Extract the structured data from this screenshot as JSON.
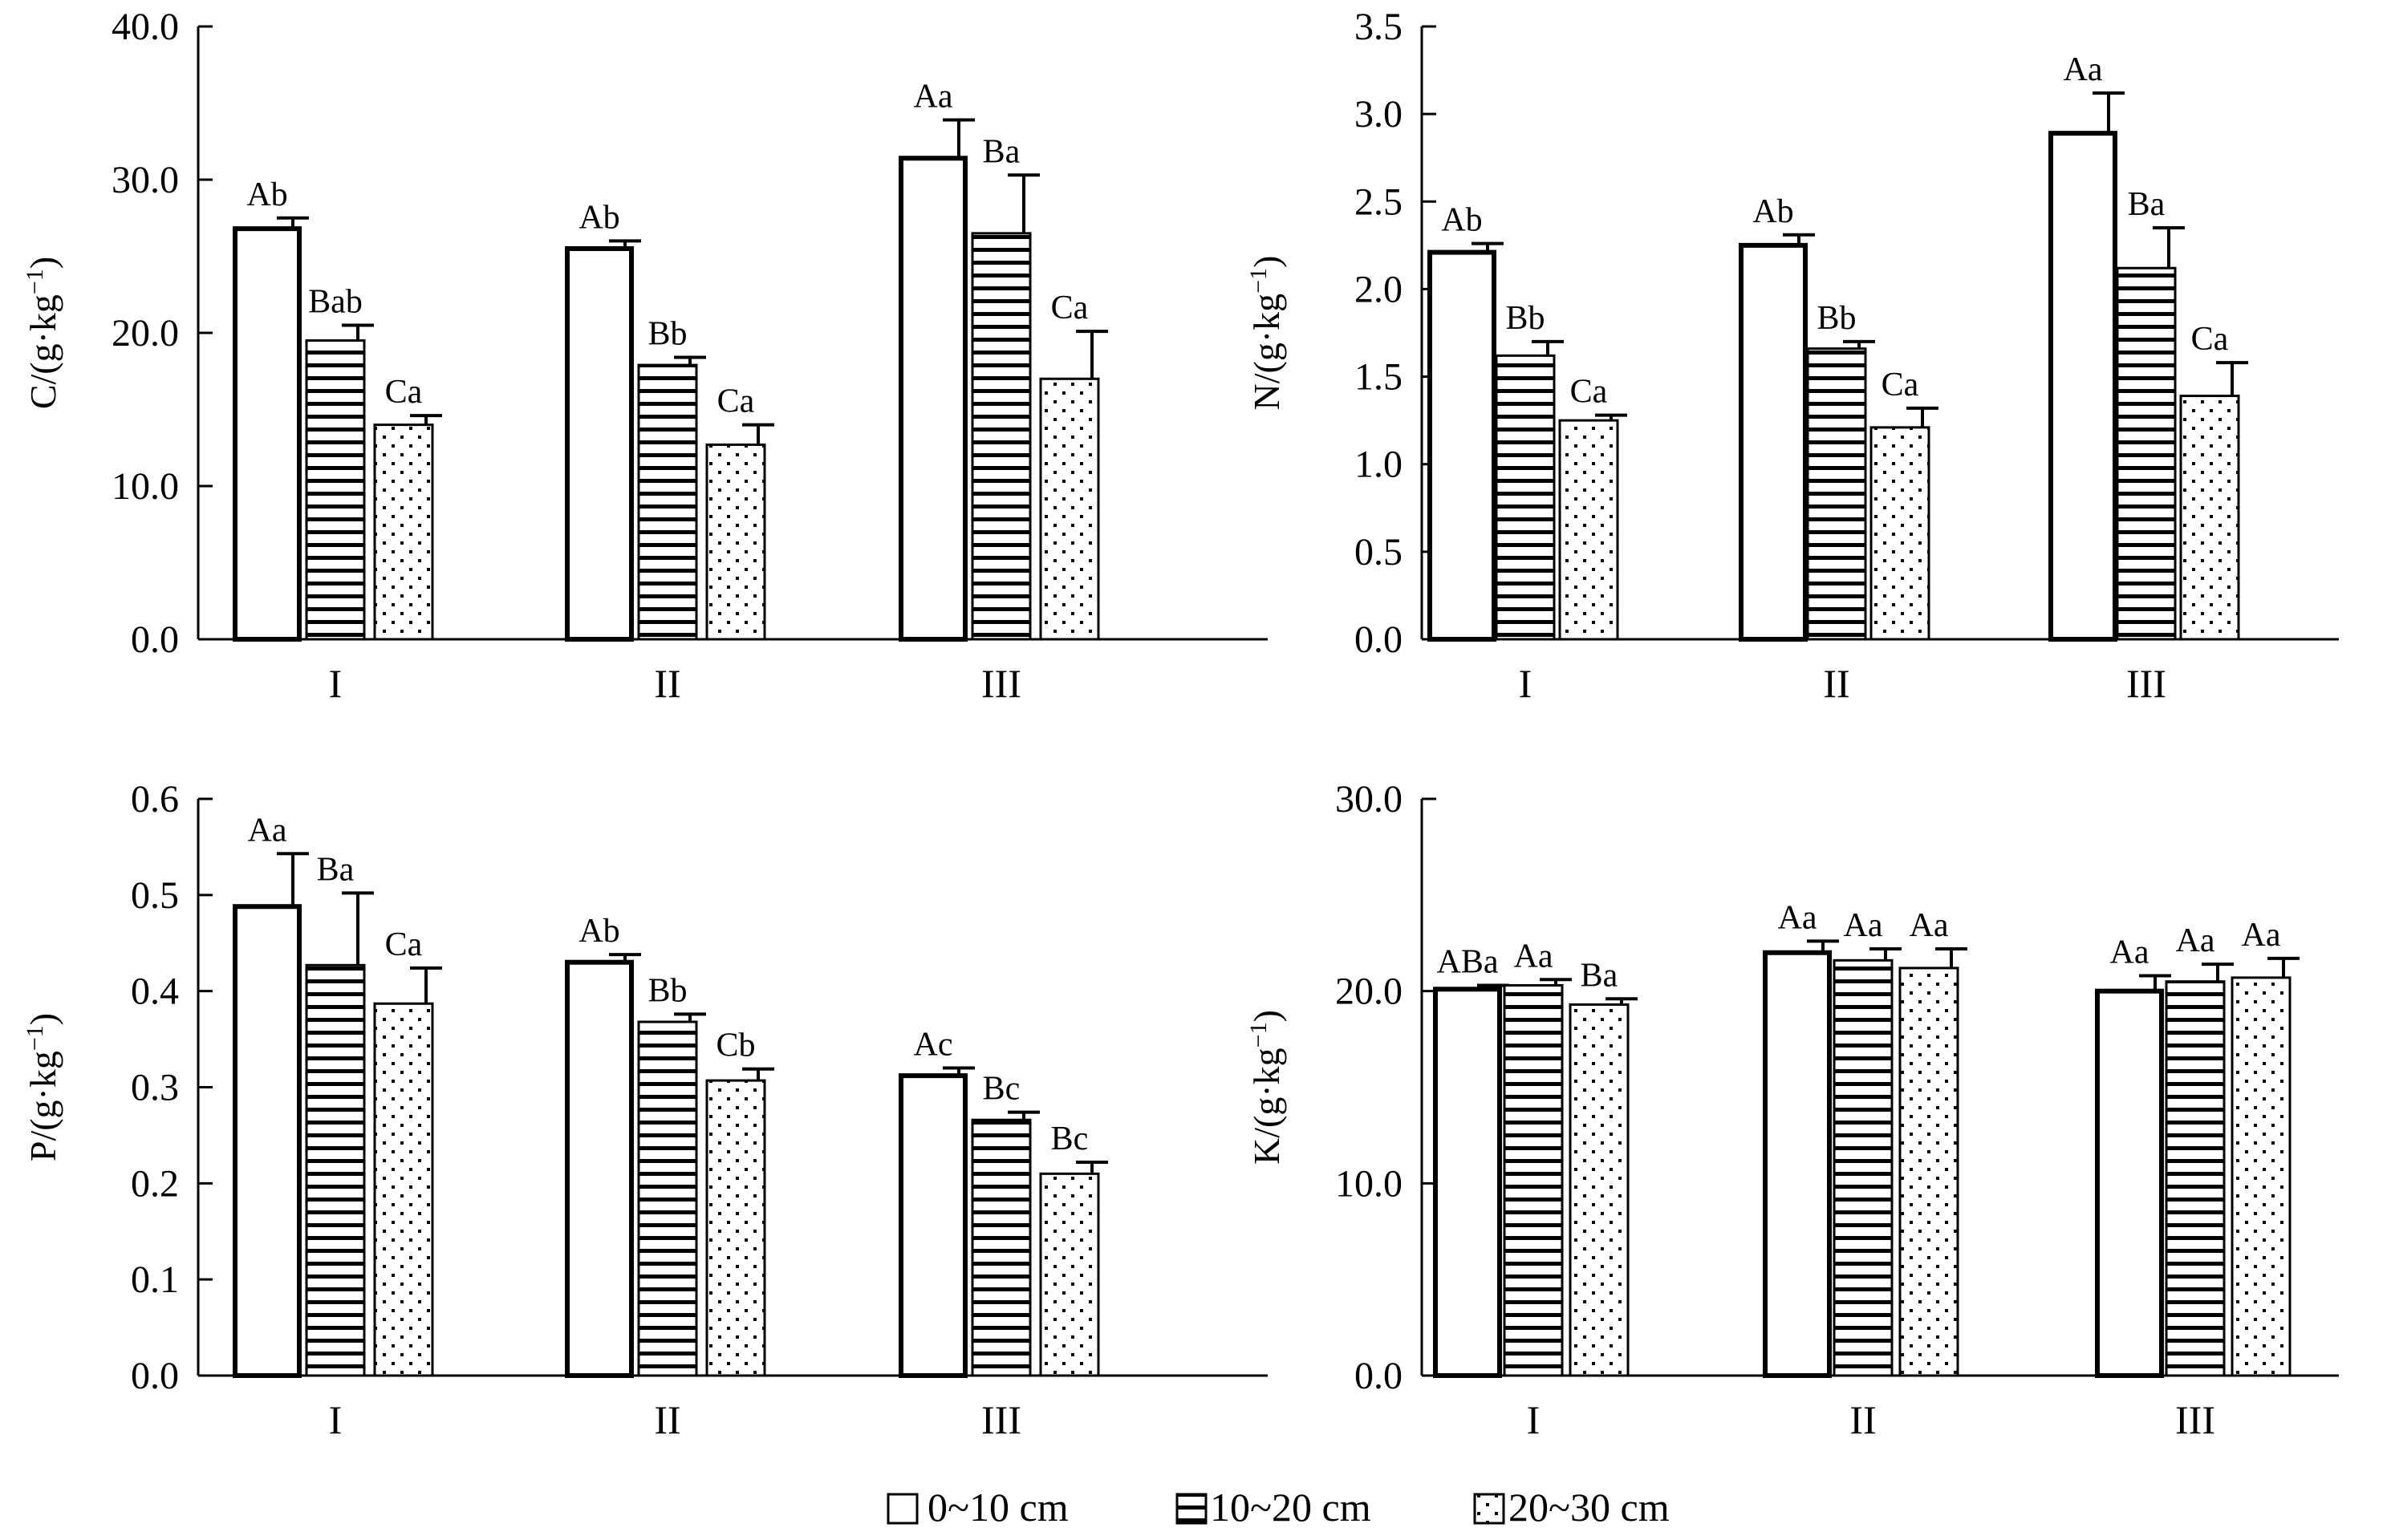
{
  "legend": {
    "items": [
      {
        "label": "0~10 cm",
        "pattern": "open"
      },
      {
        "label": "10~20 cm",
        "pattern": "hlines"
      },
      {
        "label": "20~30 cm",
        "pattern": "dots"
      }
    ]
  },
  "chart_data": [
    {
      "type": "bar",
      "ylabel_main": "C/(g·kg",
      "ylabel_sup": "−1",
      "ylabel_end": ")",
      "categories": [
        "I",
        "II",
        "III"
      ],
      "ylim": [
        0,
        40
      ],
      "yticks": [
        "0.0",
        "10.0",
        "20.0",
        "30.0",
        "40.0"
      ],
      "ytick_values": [
        0,
        10,
        20,
        30,
        40
      ],
      "series": [
        {
          "values": [
            26.8,
            25.5,
            31.4
          ],
          "errors": [
            0.7,
            0.5,
            2.5
          ],
          "labels": [
            "Ab",
            "Ab",
            "Aa"
          ]
        },
        {
          "values": [
            19.5,
            17.9,
            26.5
          ],
          "errors": [
            1.0,
            0.5,
            3.8
          ],
          "labels": [
            "Bab",
            "Bb",
            "Ba"
          ]
        },
        {
          "values": [
            14.0,
            12.7,
            17.0
          ],
          "errors": [
            0.6,
            1.3,
            3.1
          ],
          "labels": [
            "Ca",
            "Ca",
            "Ca"
          ]
        }
      ]
    },
    {
      "type": "bar",
      "ylabel_main": "N/(g·kg",
      "ylabel_sup": "−1",
      "ylabel_end": ")",
      "categories": [
        "I",
        "II",
        "III"
      ],
      "ylim": [
        0,
        3.5
      ],
      "yticks": [
        "0.0",
        "0.5",
        "1.0",
        "1.5",
        "2.0",
        "2.5",
        "3.0",
        "3.5"
      ],
      "ytick_values": [
        0,
        0.5,
        1.0,
        1.5,
        2.0,
        2.5,
        3.0,
        3.5
      ],
      "series": [
        {
          "values": [
            2.21,
            2.25,
            2.89
          ],
          "errors": [
            0.05,
            0.06,
            0.23
          ],
          "labels": [
            "Ab",
            "Ab",
            "Aa"
          ]
        },
        {
          "values": [
            1.62,
            1.66,
            2.12
          ],
          "errors": [
            0.08,
            0.04,
            0.23
          ],
          "labels": [
            "Bb",
            "Bb",
            "Ba"
          ]
        },
        {
          "values": [
            1.25,
            1.21,
            1.39
          ],
          "errors": [
            0.03,
            0.11,
            0.19
          ],
          "labels": [
            "Ca",
            "Ca",
            "Ca"
          ]
        }
      ]
    },
    {
      "type": "bar",
      "ylabel_main": "P/(g·kg",
      "ylabel_sup": "−1",
      "ylabel_end": ")",
      "categories": [
        "I",
        "II",
        "III"
      ],
      "ylim": [
        0,
        0.6
      ],
      "yticks": [
        "0.0",
        "0.1",
        "0.2",
        "0.3",
        "0.4",
        "0.5",
        "0.6"
      ],
      "ytick_values": [
        0,
        0.1,
        0.2,
        0.3,
        0.4,
        0.5,
        0.6
      ],
      "series": [
        {
          "values": [
            0.488,
            0.43,
            0.312
          ],
          "errors": [
            0.055,
            0.008,
            0.008
          ],
          "labels": [
            "Aa",
            "Ab",
            "Ac"
          ]
        },
        {
          "values": [
            0.427,
            0.368,
            0.266
          ],
          "errors": [
            0.075,
            0.008,
            0.008
          ],
          "labels": [
            "Ba",
            "Bb",
            "Bc"
          ]
        },
        {
          "values": [
            0.387,
            0.307,
            0.21
          ],
          "errors": [
            0.037,
            0.012,
            0.012
          ],
          "labels": [
            "Ca",
            "Cb",
            "Bc"
          ]
        }
      ]
    },
    {
      "type": "bar",
      "ylabel_main": "K/(g·kg",
      "ylabel_sup": "−1",
      "ylabel_end": ")",
      "categories": [
        "I",
        "II",
        "III"
      ],
      "ylim": [
        0,
        30
      ],
      "yticks": [
        "0.0",
        "10.0",
        "20.0",
        "30.0"
      ],
      "ytick_values": [
        0,
        10,
        20,
        30
      ],
      "series": [
        {
          "values": [
            20.1,
            22.0,
            20.0
          ],
          "errors": [
            0.2,
            0.6,
            0.8
          ],
          "labels": [
            "ABa",
            "Aa",
            "Aa"
          ]
        },
        {
          "values": [
            20.3,
            21.6,
            20.5
          ],
          "errors": [
            0.3,
            0.6,
            0.9
          ],
          "labels": [
            "Aa",
            "Aa",
            "Aa"
          ]
        },
        {
          "values": [
            19.3,
            21.2,
            20.7
          ],
          "errors": [
            0.3,
            1.0,
            1.0
          ],
          "labels": [
            "Ba",
            "Aa",
            "Aa"
          ]
        }
      ]
    }
  ]
}
